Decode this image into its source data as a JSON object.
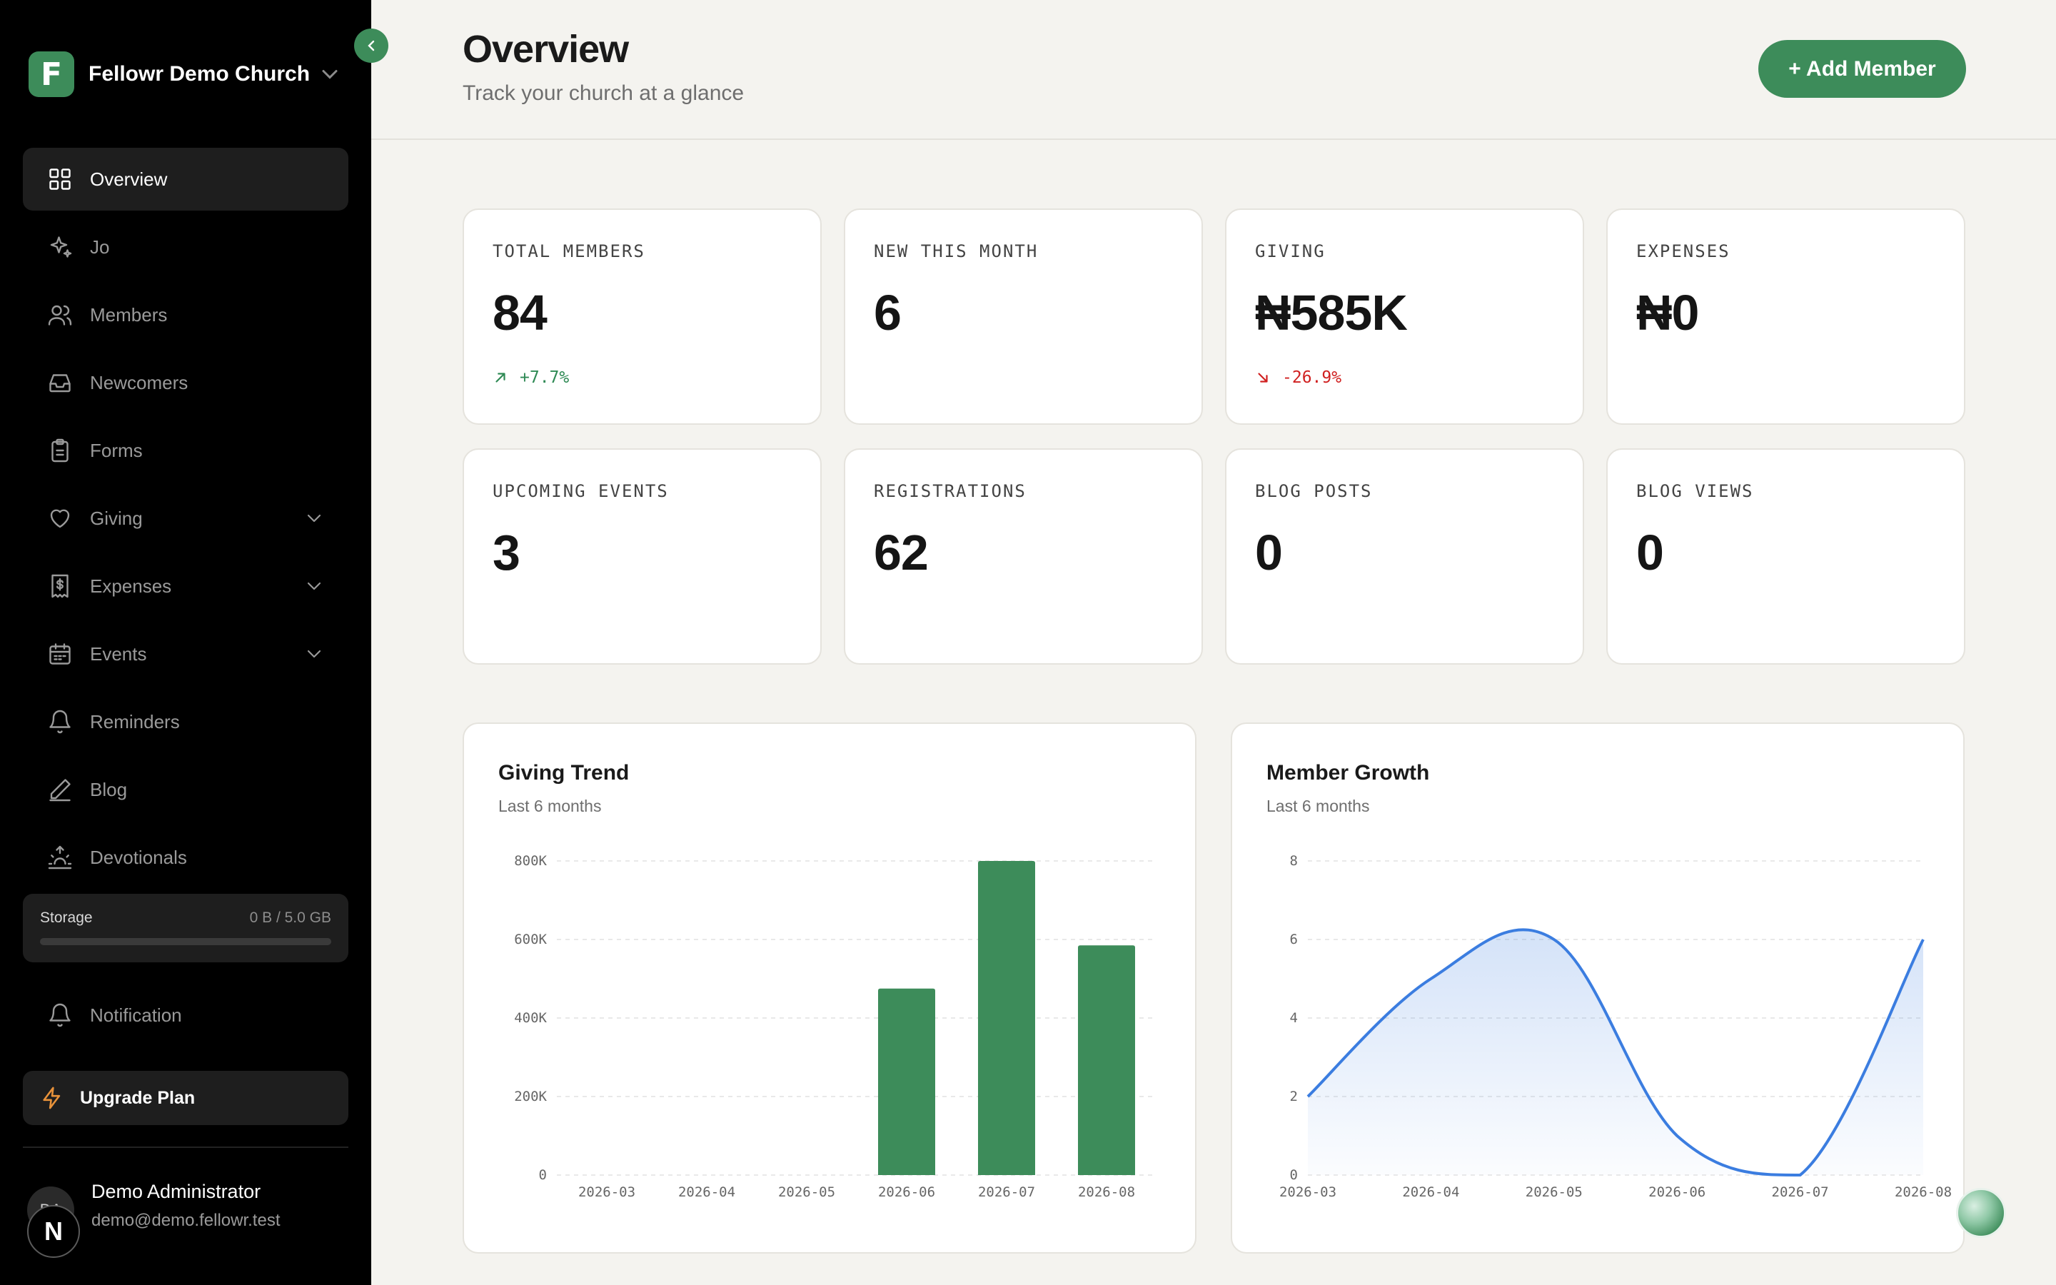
{
  "sidebar": {
    "brand": {
      "logo_letter": "F",
      "name": "Fellowr Demo Church"
    },
    "nav": [
      {
        "label": "Overview",
        "icon": "grid-icon",
        "active": true,
        "expandable": false
      },
      {
        "label": "Jo",
        "icon": "sparkles-icon",
        "active": false,
        "expandable": false
      },
      {
        "label": "Members",
        "icon": "users-icon",
        "active": false,
        "expandable": false
      },
      {
        "label": "Newcomers",
        "icon": "inbox-icon",
        "active": false,
        "expandable": false
      },
      {
        "label": "Forms",
        "icon": "clipboard-icon",
        "active": false,
        "expandable": false
      },
      {
        "label": "Giving",
        "icon": "heart-icon",
        "active": false,
        "expandable": true
      },
      {
        "label": "Expenses",
        "icon": "dollar-receipt-icon",
        "active": false,
        "expandable": true
      },
      {
        "label": "Events",
        "icon": "calendar-icon",
        "active": false,
        "expandable": true
      },
      {
        "label": "Reminders",
        "icon": "bell-icon",
        "active": false,
        "expandable": false
      },
      {
        "label": "Blog",
        "icon": "pencil-icon",
        "active": false,
        "expandable": false
      },
      {
        "label": "Devotionals",
        "icon": "sunrise-icon",
        "active": false,
        "expandable": false
      }
    ],
    "storage": {
      "label": "Storage",
      "value": "0 B / 5.0 GB",
      "used_fraction": 0
    },
    "notification_label": "Notification",
    "upgrade_label": "Upgrade Plan",
    "user": {
      "initials": "DA",
      "name": "Demo Administrator",
      "email": "demo@demo.fellowr.test"
    },
    "next_badge": "N"
  },
  "header": {
    "title": "Overview",
    "subtitle": "Track your church at a glance",
    "add_button": "+ Add Member"
  },
  "stats": [
    {
      "label": "TOTAL MEMBERS",
      "value": "84",
      "trend": "+7.7%",
      "direction": "up"
    },
    {
      "label": "NEW THIS MONTH",
      "value": "6",
      "trend": "",
      "direction": ""
    },
    {
      "label": "GIVING",
      "value": "₦585K",
      "trend": "-26.9%",
      "direction": "down"
    },
    {
      "label": "EXPENSES",
      "value": "₦0",
      "trend": "",
      "direction": ""
    },
    {
      "label": "UPCOMING EVENTS",
      "value": "3",
      "trend": "",
      "direction": ""
    },
    {
      "label": "REGISTRATIONS",
      "value": "62",
      "trend": "",
      "direction": ""
    },
    {
      "label": "BLOG POSTS",
      "value": "0",
      "trend": "",
      "direction": ""
    },
    {
      "label": "BLOG VIEWS",
      "value": "0",
      "trend": "",
      "direction": ""
    }
  ],
  "colors": {
    "accent": "#3d8c5a",
    "line": "#3b7de0",
    "trend_up": "#2f8a55",
    "trend_down": "#d02020"
  },
  "chart_data": [
    {
      "type": "bar",
      "title": "Giving Trend",
      "subtitle": "Last 6 months",
      "categories": [
        "2026-03",
        "2026-04",
        "2026-05",
        "2026-06",
        "2026-07",
        "2026-08"
      ],
      "values": [
        0,
        0,
        0,
        475000,
        800000,
        585000
      ],
      "yticks": [
        "0",
        "200K",
        "400K",
        "600K",
        "800K"
      ],
      "ytick_values": [
        0,
        200000,
        400000,
        600000,
        800000
      ],
      "ylim": [
        0,
        800000
      ],
      "grid": true,
      "color": "#3d8c5a"
    },
    {
      "type": "area",
      "title": "Member Growth",
      "subtitle": "Last 6 months",
      "categories": [
        "2026-03",
        "2026-04",
        "2026-05",
        "2026-06",
        "2026-07",
        "2026-08"
      ],
      "values": [
        2,
        5,
        6,
        1,
        0,
        6
      ],
      "yticks": [
        "0",
        "2",
        "4",
        "6",
        "8"
      ],
      "ytick_values": [
        0,
        2,
        4,
        6,
        8
      ],
      "ylim": [
        0,
        8
      ],
      "grid": true,
      "color": "#3b7de0"
    }
  ]
}
